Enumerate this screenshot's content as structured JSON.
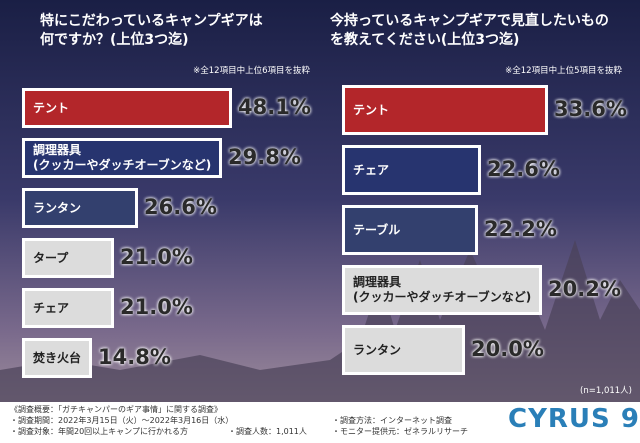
{
  "chart_data": [
    {
      "type": "bar",
      "title": "特にこだわっているキャンプギアは\n何ですか？(上位3つ迄)",
      "note": "※全12項目中上位6項目を抜粋",
      "categories": [
        "テント",
        "調理器具\n(クッカーやダッチオーブンなど)",
        "ランタン",
        "タープ",
        "チェア",
        "焚き火台"
      ],
      "values": [
        48.1,
        29.8,
        26.6,
        21.0,
        21.0,
        14.8
      ],
      "value_labels": [
        "48.1%",
        "29.8%",
        "26.6%",
        "21.0%",
        "21.0%",
        "14.8%"
      ],
      "colors": [
        "#b3262a",
        "#27346f",
        "#33406e",
        "#dcdcdc",
        "#dcdcdc",
        "#dcdcdc"
      ]
    },
    {
      "type": "bar",
      "title": "今持っているキャンプギアで見直したいもの\nを教えてください(上位3つ迄)",
      "note": "※全12項目中上位5項目を抜粋",
      "categories": [
        "テント",
        "チェア",
        "テーブル",
        "調理器具\n(クッカーやダッチオーブンなど)",
        "ランタン"
      ],
      "values": [
        33.6,
        22.6,
        22.2,
        20.2,
        20.0
      ],
      "value_labels": [
        "33.6%",
        "22.6%",
        "22.2%",
        "20.2%",
        "20.0%"
      ],
      "colors": [
        "#b3262a",
        "#27346f",
        "#33406e",
        "#dcdcdc",
        "#dcdcdc"
      ]
    }
  ],
  "sample_note": "(n=1,011人)",
  "footer": {
    "lines_left": [
      "《調査概要：「ガチキャンパーのギア事情」に関する調査》",
      "・調査期間：2022年3月15日（火）～2022年3月16日（水）",
      "・調査対象：年間20回以上キャンプに行かれる方"
    ],
    "count": "・調査人数：1,011人",
    "lines_right": [
      "・調査方法：インターネット調査",
      "・モニター提供元：ゼネラルリサーチ"
    ],
    "logo": "CYRUS 9"
  }
}
